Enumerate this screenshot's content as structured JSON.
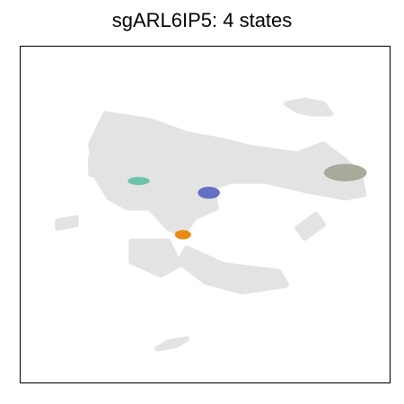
{
  "chart_data": {
    "type": "scatter",
    "title": "sgARL6IP5: 4 states",
    "xlabel": "",
    "ylabel": "",
    "grid": false,
    "axes_ticks": false,
    "colors": {
      "background_points": "#e3e3e3",
      "frame": "#000000"
    },
    "background_regions": [
      {
        "name": "main-body",
        "points": [
          [
            0.23,
            0.8
          ],
          [
            0.35,
            0.78
          ],
          [
            0.45,
            0.74
          ],
          [
            0.55,
            0.72
          ],
          [
            0.62,
            0.7
          ],
          [
            0.75,
            0.68
          ],
          [
            0.82,
            0.71
          ],
          [
            0.88,
            0.66
          ],
          [
            0.92,
            0.62
          ],
          [
            0.93,
            0.56
          ],
          [
            0.88,
            0.55
          ],
          [
            0.78,
            0.57
          ],
          [
            0.66,
            0.6
          ],
          [
            0.57,
            0.6
          ],
          [
            0.52,
            0.58
          ],
          [
            0.53,
            0.52
          ],
          [
            0.47,
            0.49
          ],
          [
            0.44,
            0.44
          ],
          [
            0.4,
            0.46
          ],
          [
            0.35,
            0.52
          ],
          [
            0.29,
            0.52
          ],
          [
            0.24,
            0.55
          ],
          [
            0.2,
            0.62
          ],
          [
            0.19,
            0.71
          ]
        ]
      },
      {
        "name": "upper-right-loop",
        "points": [
          [
            0.72,
            0.83
          ],
          [
            0.77,
            0.84
          ],
          [
            0.82,
            0.83
          ],
          [
            0.84,
            0.8
          ],
          [
            0.79,
            0.8
          ],
          [
            0.75,
            0.81
          ]
        ]
      },
      {
        "name": "left-arm",
        "points": [
          [
            0.19,
            0.67
          ],
          [
            0.27,
            0.65
          ],
          [
            0.27,
            0.62
          ],
          [
            0.19,
            0.62
          ]
        ]
      },
      {
        "name": "right-arm",
        "points": [
          [
            0.56,
            0.63
          ],
          [
            0.7,
            0.62
          ],
          [
            0.8,
            0.6
          ],
          [
            0.85,
            0.62
          ],
          [
            0.8,
            0.65
          ],
          [
            0.68,
            0.66
          ]
        ]
      },
      {
        "name": "left-island",
        "points": [
          [
            0.1,
            0.48
          ],
          [
            0.15,
            0.49
          ],
          [
            0.15,
            0.47
          ],
          [
            0.1,
            0.46
          ]
        ]
      },
      {
        "name": "right-island",
        "points": [
          [
            0.75,
            0.46
          ],
          [
            0.8,
            0.5
          ],
          [
            0.82,
            0.47
          ],
          [
            0.77,
            0.43
          ]
        ]
      },
      {
        "name": "lower-tail",
        "points": [
          [
            0.45,
            0.4
          ],
          [
            0.55,
            0.35
          ],
          [
            0.7,
            0.33
          ],
          [
            0.72,
            0.29
          ],
          [
            0.6,
            0.27
          ],
          [
            0.5,
            0.3
          ],
          [
            0.43,
            0.36
          ]
        ]
      },
      {
        "name": "lower-left-blob",
        "points": [
          [
            0.3,
            0.42
          ],
          [
            0.4,
            0.42
          ],
          [
            0.43,
            0.35
          ],
          [
            0.38,
            0.32
          ],
          [
            0.3,
            0.36
          ]
        ]
      },
      {
        "name": "bottom-blob",
        "points": [
          [
            0.37,
            0.1
          ],
          [
            0.42,
            0.11
          ],
          [
            0.45,
            0.13
          ],
          [
            0.4,
            0.12
          ]
        ]
      }
    ],
    "series": [
      {
        "color": "#6bc3aa",
        "cx": 0.32,
        "cy": 0.6,
        "rx": 0.03,
        "ry": 0.012
      },
      {
        "color": "#6470c4",
        "cx": 0.51,
        "cy": 0.565,
        "rx": 0.03,
        "ry": 0.018
      },
      {
        "color": "#e88a13",
        "cx": 0.44,
        "cy": 0.44,
        "rx": 0.022,
        "ry": 0.014
      },
      {
        "color": "#a6ab9b",
        "cx": 0.88,
        "cy": 0.625,
        "rx": 0.058,
        "ry": 0.026
      }
    ]
  }
}
